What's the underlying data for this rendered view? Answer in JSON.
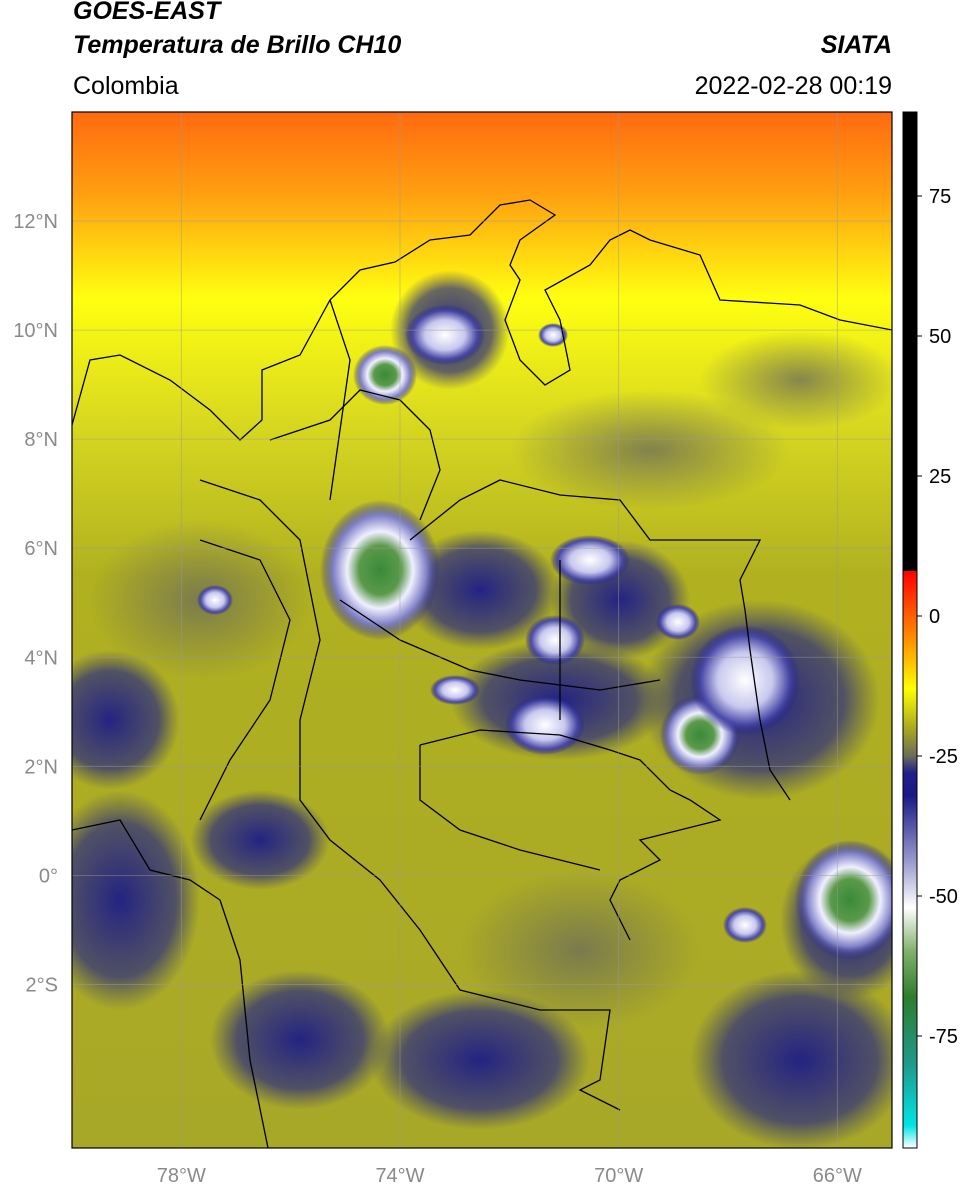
{
  "header": {
    "satellite": "GOES-EAST",
    "product": "Temperatura de Brillo CH10",
    "region": "Colombia",
    "agency": "SIATA",
    "timestamp": "2022-02-28 00:19"
  },
  "map": {
    "lon_range": [
      -80,
      -65
    ],
    "lat_range": [
      -5,
      14
    ],
    "lat_ticks": [
      {
        "value": 12,
        "label": "12°N"
      },
      {
        "value": 10,
        "label": "10°N"
      },
      {
        "value": 8,
        "label": "8°N"
      },
      {
        "value": 6,
        "label": "6°N"
      },
      {
        "value": 4,
        "label": "4°N"
      },
      {
        "value": 2,
        "label": "2°N"
      },
      {
        "value": 0,
        "label": "0°"
      },
      {
        "value": -2,
        "label": "2°S"
      }
    ],
    "lon_ticks": [
      {
        "value": -78,
        "label": "78°W"
      },
      {
        "value": -74,
        "label": "74°W"
      },
      {
        "value": -70,
        "label": "70°W"
      },
      {
        "value": -66,
        "label": "66°W"
      }
    ]
  },
  "colorbar": {
    "range": [
      -95,
      90
    ],
    "ticks": [
      {
        "value": 75,
        "label": "75"
      },
      {
        "value": 50,
        "label": "50"
      },
      {
        "value": 25,
        "label": "25"
      },
      {
        "value": 0,
        "label": "0"
      },
      {
        "value": -25,
        "label": "-25"
      },
      {
        "value": -50,
        "label": "-50"
      },
      {
        "value": -75,
        "label": "-75"
      }
    ],
    "stops": [
      {
        "v": -95,
        "c": "#ffffff"
      },
      {
        "v": -91,
        "c": "#00e5e5"
      },
      {
        "v": -80,
        "c": "#1e9a8c"
      },
      {
        "v": -68,
        "c": "#2f7d2e"
      },
      {
        "v": -60,
        "c": "#7fb06a"
      },
      {
        "v": -52,
        "c": "#ffffff"
      },
      {
        "v": -44,
        "c": "#9c9cd0"
      },
      {
        "v": -32,
        "c": "#1a1a86"
      },
      {
        "v": -28,
        "c": "#20208a"
      },
      {
        "v": -25,
        "c": "#6c6c5c"
      },
      {
        "v": -20,
        "c": "#aaaa20"
      },
      {
        "v": -13,
        "c": "#ffff00"
      },
      {
        "v": -5,
        "c": "#ff9a00"
      },
      {
        "v": 8,
        "c": "#ff0000"
      },
      {
        "v": 8.01,
        "c": "#000000"
      },
      {
        "v": 90,
        "c": "#000000"
      }
    ]
  },
  "colors": {
    "sea_warm": "#ff7a10",
    "sea_yellow": "#ffff10",
    "olive": "#b5b520",
    "deep_blue": "#1c1c88",
    "cold_white": "#e8e8ff",
    "coldest_green": "#3a8a3a"
  }
}
